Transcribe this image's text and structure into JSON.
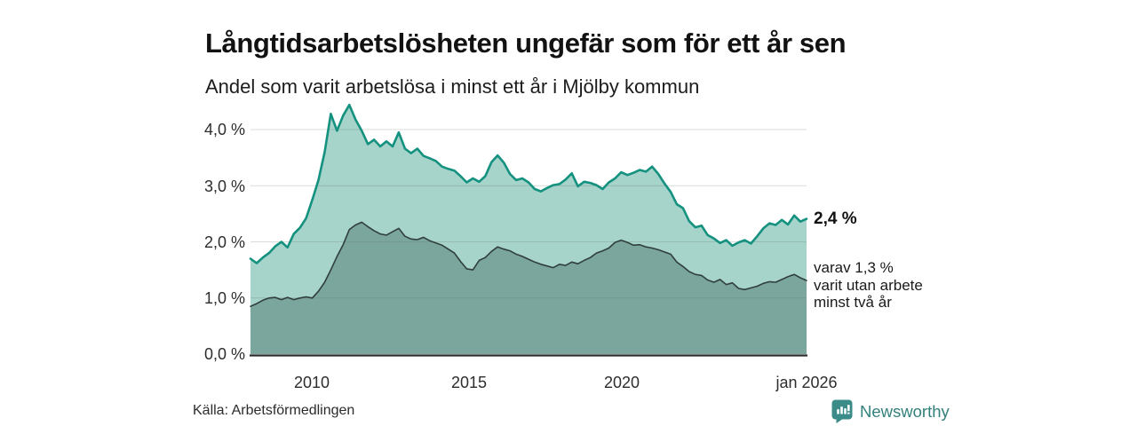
{
  "chart_data": {
    "type": "area",
    "title": "Långtidsarbetslösheten ungefär som för ett år sen",
    "subtitle": "Andel som varit arbetslösa i minst ett år i Mjölby kommun",
    "x_axis": {
      "range": [
        2008,
        2026
      ],
      "ticks": [
        {
          "value": 2010,
          "label": "2010"
        },
        {
          "value": 2015,
          "label": "2015"
        },
        {
          "value": 2020,
          "label": "2020"
        },
        {
          "value": 2026,
          "label": "jan 2026"
        }
      ]
    },
    "y_axis": {
      "range": [
        0,
        4.5
      ],
      "unit": "%",
      "grid": true,
      "ticks": [
        {
          "value": 0,
          "label": "0,0 %"
        },
        {
          "value": 1,
          "label": "1,0 %"
        },
        {
          "value": 2,
          "label": "2,0 %"
        },
        {
          "value": 3,
          "label": "3,0 %"
        },
        {
          "value": 4,
          "label": "4,0 %"
        }
      ]
    },
    "grid_color": "rgba(100,114,109,0.25)",
    "axis_color": "#2b2b2b",
    "x": [
      2008,
      2008.2,
      2008.4,
      2008.6,
      2008.8,
      2009,
      2009.2,
      2009.4,
      2009.6,
      2009.8,
      2010,
      2010.2,
      2010.4,
      2010.6,
      2010.8,
      2011,
      2011.2,
      2011.4,
      2011.6,
      2011.8,
      2012,
      2012.2,
      2012.4,
      2012.6,
      2012.8,
      2013,
      2013.2,
      2013.4,
      2013.6,
      2013.8,
      2014,
      2014.2,
      2014.4,
      2014.6,
      2014.8,
      2015,
      2015.2,
      2015.4,
      2015.6,
      2015.8,
      2016,
      2016.2,
      2016.4,
      2016.6,
      2016.8,
      2017,
      2017.2,
      2017.4,
      2017.6,
      2017.8,
      2018,
      2018.2,
      2018.4,
      2018.6,
      2018.8,
      2019,
      2019.2,
      2019.4,
      2019.6,
      2019.8,
      2020,
      2020.2,
      2020.4,
      2020.6,
      2020.8,
      2021,
      2021.2,
      2021.4,
      2021.6,
      2021.8,
      2022,
      2022.2,
      2022.4,
      2022.6,
      2022.8,
      2023,
      2023.2,
      2023.4,
      2023.6,
      2023.8,
      2024,
      2024.2,
      2024.4,
      2024.6,
      2024.8,
      2025,
      2025.2,
      2025.4,
      2025.6,
      2025.8,
      2026
    ],
    "series": [
      {
        "name": "Arbetslösa minst ett år",
        "line_color": "#14917f",
        "fill_color": "#a6d3ca",
        "line_width": 2.6,
        "end_value": "2,4 %",
        "values": [
          1.7,
          1.62,
          1.72,
          1.8,
          1.92,
          2.0,
          1.9,
          2.14,
          2.25,
          2.42,
          2.75,
          3.1,
          3.6,
          4.28,
          3.98,
          4.25,
          4.44,
          4.18,
          3.98,
          3.74,
          3.82,
          3.7,
          3.79,
          3.7,
          3.95,
          3.66,
          3.58,
          3.66,
          3.53,
          3.49,
          3.44,
          3.34,
          3.3,
          3.27,
          3.17,
          3.06,
          3.13,
          3.07,
          3.17,
          3.42,
          3.54,
          3.41,
          3.21,
          3.1,
          3.13,
          3.06,
          2.94,
          2.9,
          2.96,
          3.01,
          3.03,
          3.11,
          3.22,
          2.99,
          3.07,
          3.05,
          3.01,
          2.94,
          3.06,
          3.13,
          3.24,
          3.19,
          3.23,
          3.28,
          3.25,
          3.34,
          3.21,
          3.04,
          2.89,
          2.67,
          2.6,
          2.37,
          2.26,
          2.29,
          2.12,
          2.06,
          1.98,
          2.03,
          1.93,
          1.99,
          2.03,
          1.97,
          2.1,
          2.24,
          2.33,
          2.3,
          2.39,
          2.31,
          2.47,
          2.36,
          2.41
        ]
      },
      {
        "name": "Arbetslösa minst två år",
        "line_color": "#303f3b",
        "fill_color": "#7aa69e",
        "line_width": 1.6,
        "end_value": "1,3 %",
        "values": [
          0.85,
          0.9,
          0.96,
          1.0,
          1.01,
          0.97,
          1.01,
          0.97,
          1.0,
          1.02,
          1.0,
          1.12,
          1.28,
          1.5,
          1.74,
          1.95,
          2.22,
          2.3,
          2.35,
          2.27,
          2.2,
          2.14,
          2.12,
          2.18,
          2.24,
          2.1,
          2.05,
          2.04,
          2.08,
          2.02,
          1.98,
          1.94,
          1.87,
          1.8,
          1.65,
          1.52,
          1.5,
          1.67,
          1.72,
          1.83,
          1.91,
          1.87,
          1.84,
          1.78,
          1.74,
          1.69,
          1.64,
          1.6,
          1.57,
          1.54,
          1.6,
          1.58,
          1.64,
          1.61,
          1.67,
          1.72,
          1.8,
          1.84,
          1.89,
          1.99,
          2.03,
          1.99,
          1.94,
          1.95,
          1.91,
          1.89,
          1.86,
          1.82,
          1.78,
          1.64,
          1.56,
          1.47,
          1.42,
          1.4,
          1.32,
          1.28,
          1.33,
          1.24,
          1.27,
          1.17,
          1.15,
          1.18,
          1.21,
          1.26,
          1.29,
          1.28,
          1.33,
          1.38,
          1.42,
          1.36,
          1.31
        ]
      }
    ],
    "annotations": {
      "total": "2,4 %",
      "sub_lines": [
        "varav 1,3 %",
        "varit utan arbete",
        "minst två år"
      ]
    },
    "legend": "none"
  },
  "footer": {
    "source": "Källa: Arbetsförmedlingen",
    "brand": "Newsworthy",
    "brand_color": "#33807c",
    "icon_color": "#3b8c88"
  }
}
